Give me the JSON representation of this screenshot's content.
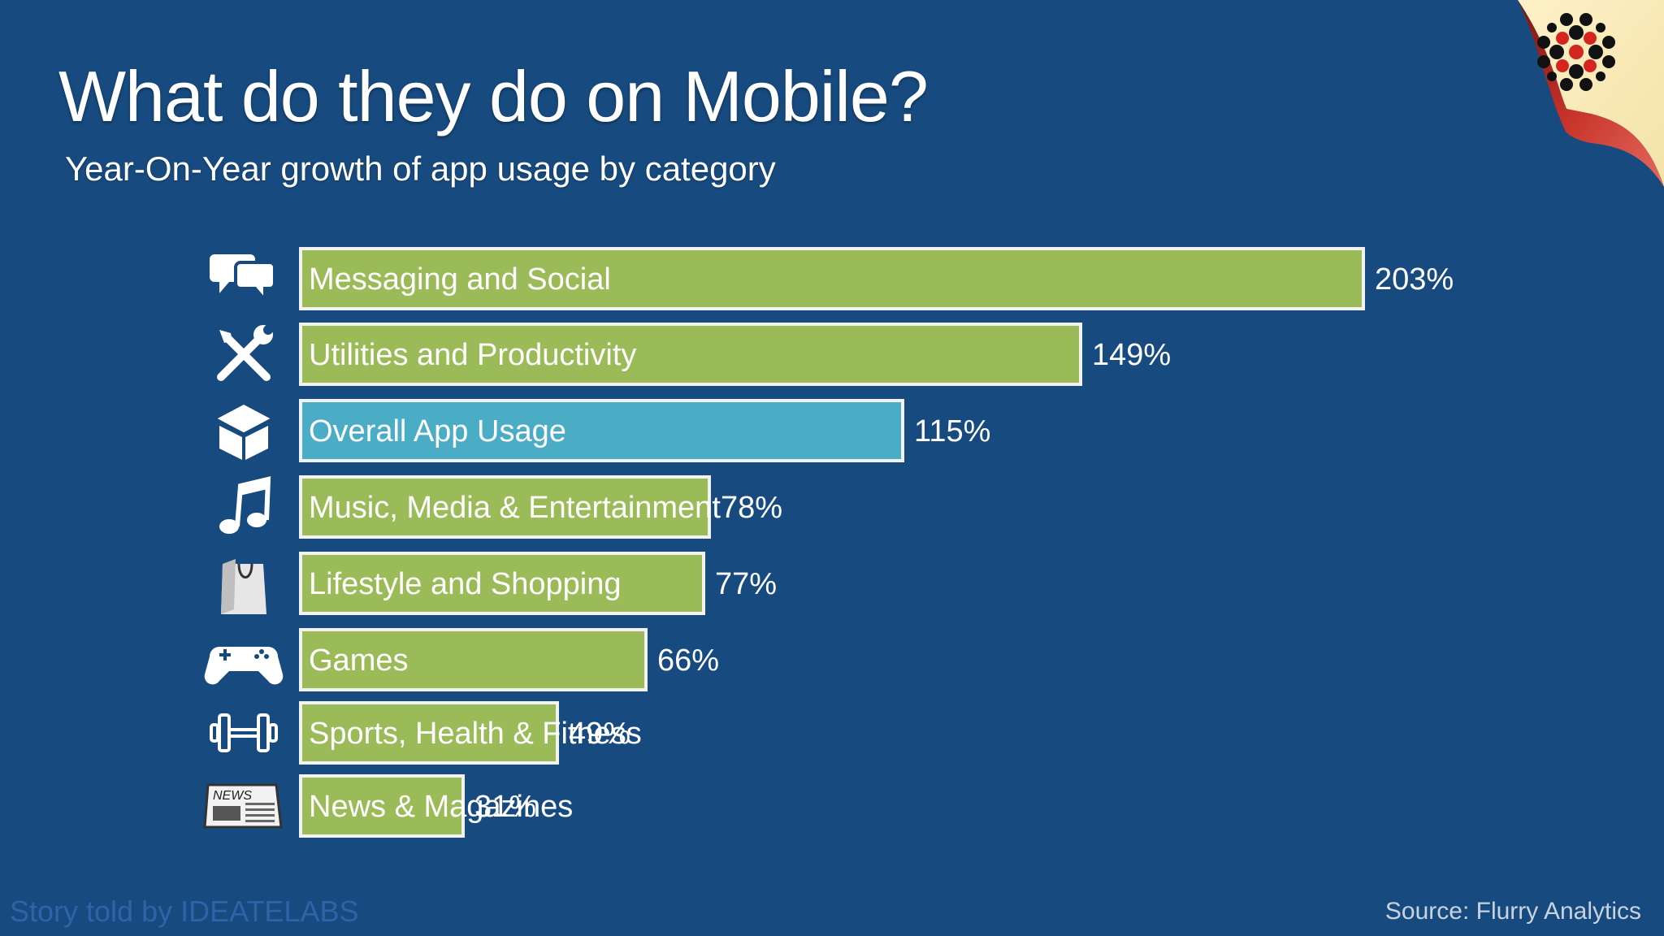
{
  "title": "What do they do on Mobile?",
  "subtitle": "Year-On-Year growth of app usage by category",
  "footer": {
    "credit": "Story told by IDEATELABS",
    "source": "Source: Flurry Analytics"
  },
  "colors": {
    "background": "#174a7e",
    "bar_default": "#9bbb59",
    "bar_highlight": "#4bacc6",
    "bar_border": "#f2f2f2"
  },
  "chart_data": {
    "type": "bar",
    "orientation": "horizontal",
    "title": "What do they do on Mobile?",
    "subtitle": "Year-On-Year growth of app usage by category",
    "categories": [
      "Messaging and Social",
      "Utilities and Productivity",
      "Overall App Usage",
      "Music, Media & Entertainment",
      "Lifestyle and Shopping",
      "Games",
      "Sports, Health & Fitness",
      "News & Magazines"
    ],
    "values": [
      203,
      149,
      115,
      78,
      77,
      66,
      49,
      31
    ],
    "value_labels": [
      "203%",
      "149%",
      "115%",
      "78%",
      "77%",
      "66%",
      "49%",
      "31%"
    ],
    "icons": [
      "speech-bubbles-icon",
      "tools-icon",
      "box-icon",
      "music-note-icon",
      "shopping-bag-icon",
      "gamepad-icon",
      "dumbbell-icon",
      "newspaper-icon"
    ],
    "highlight_category": "Overall App Usage",
    "xlim": [
      0,
      203
    ],
    "grid": false,
    "legend": "none"
  }
}
